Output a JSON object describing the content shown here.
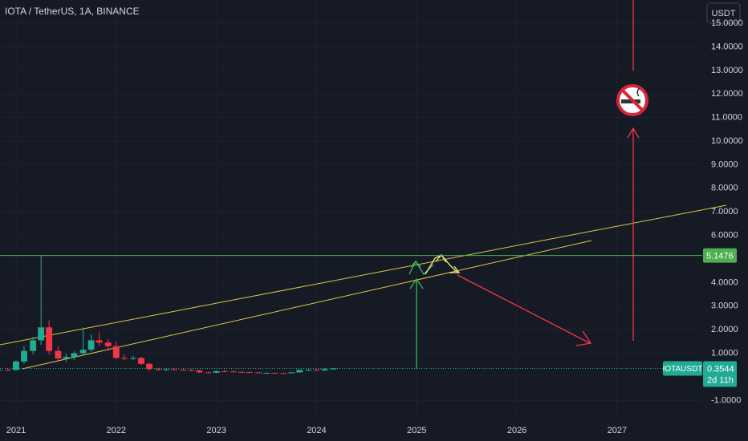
{
  "chart_data": {
    "type": "candlestick",
    "title": "IOTA / TetherUS, 1A, BINANCE",
    "currency": "USDT",
    "symbol": "IOTAUSDT",
    "last_price": 0.3544,
    "countdown": "2d 11h",
    "level": 5.1476,
    "up_color": "#22ab94",
    "down_color": "#f23645",
    "x": [
      2020.83,
      2020.92,
      2021.0,
      2021.08,
      2021.17,
      2021.25,
      2021.33,
      2021.42,
      2021.5,
      2021.58,
      2021.67,
      2021.75,
      2021.83,
      2021.92,
      2022.0,
      2022.08,
      2022.17,
      2022.25,
      2022.33,
      2022.42,
      2022.5,
      2022.58,
      2022.67,
      2022.75,
      2022.83,
      2022.92,
      2023.0,
      2023.08,
      2023.17,
      2023.25,
      2023.33,
      2023.42,
      2023.5,
      2023.58,
      2023.67,
      2023.75,
      2023.83,
      2023.92,
      2024.0,
      2024.08,
      2024.17
    ],
    "open": [
      0.28,
      0.3,
      0.29,
      0.65,
      1.1,
      1.55,
      2.1,
      1.1,
      0.78,
      0.85,
      1.0,
      1.15,
      1.55,
      1.45,
      1.3,
      0.8,
      0.78,
      0.8,
      0.55,
      0.33,
      0.3,
      0.32,
      0.3,
      0.29,
      0.27,
      0.19,
      0.17,
      0.24,
      0.23,
      0.21,
      0.2,
      0.19,
      0.17,
      0.17,
      0.16,
      0.15,
      0.19,
      0.29,
      0.3,
      0.27,
      0.33
    ],
    "high": [
      0.32,
      0.34,
      0.7,
      1.3,
      1.7,
      5.15,
      2.4,
      1.3,
      1.0,
      1.1,
      2.1,
      1.8,
      1.9,
      1.6,
      1.5,
      0.95,
      0.9,
      0.85,
      0.6,
      0.38,
      0.36,
      0.36,
      0.34,
      0.32,
      0.3,
      0.22,
      0.28,
      0.3,
      0.26,
      0.24,
      0.22,
      0.2,
      0.19,
      0.18,
      0.17,
      0.2,
      0.32,
      0.33,
      0.34,
      0.36,
      0.38
    ],
    "low": [
      0.24,
      0.26,
      0.27,
      0.55,
      0.95,
      1.35,
      0.95,
      0.72,
      0.62,
      0.7,
      0.9,
      1.05,
      1.3,
      1.1,
      0.75,
      0.7,
      0.7,
      0.5,
      0.25,
      0.25,
      0.25,
      0.28,
      0.26,
      0.24,
      0.16,
      0.16,
      0.16,
      0.22,
      0.19,
      0.19,
      0.18,
      0.15,
      0.16,
      0.15,
      0.14,
      0.15,
      0.18,
      0.24,
      0.25,
      0.25,
      0.3
    ],
    "close": [
      0.3,
      0.29,
      0.65,
      1.1,
      1.55,
      2.1,
      1.1,
      0.78,
      0.85,
      1.0,
      1.15,
      1.55,
      1.45,
      1.3,
      0.8,
      0.78,
      0.8,
      0.55,
      0.33,
      0.3,
      0.32,
      0.3,
      0.29,
      0.27,
      0.19,
      0.17,
      0.24,
      0.23,
      0.21,
      0.2,
      0.19,
      0.17,
      0.17,
      0.16,
      0.15,
      0.19,
      0.29,
      0.3,
      0.27,
      0.33,
      0.3544
    ],
    "xlim": [
      2020.84,
      2027.85
    ],
    "xticks": [
      2021,
      2022,
      2023,
      2024,
      2025,
      2026,
      2027
    ],
    "ylim": [
      -1.77,
      15.99
    ],
    "yticks": [
      {
        "value": -1,
        "label": "-1.0000"
      },
      {
        "value": 1,
        "label": "1.0000"
      },
      {
        "value": 2,
        "label": "2.0000"
      },
      {
        "value": 3,
        "label": "3.0000"
      },
      {
        "value": 4,
        "label": "4.0000"
      },
      {
        "value": 6,
        "label": "6.0000"
      },
      {
        "value": 7,
        "label": "7.0000"
      },
      {
        "value": 8,
        "label": "8.0000"
      },
      {
        "value": 9,
        "label": "9.0000"
      },
      {
        "value": 10,
        "label": "10.0000"
      },
      {
        "value": 11,
        "label": "11.0000"
      },
      {
        "value": 12,
        "label": "12.0000"
      },
      {
        "value": 13,
        "label": "13.0000"
      },
      {
        "value": 14,
        "label": "14.0000"
      },
      {
        "value": 15,
        "label": "15.0000"
      }
    ],
    "grid": true
  }
}
